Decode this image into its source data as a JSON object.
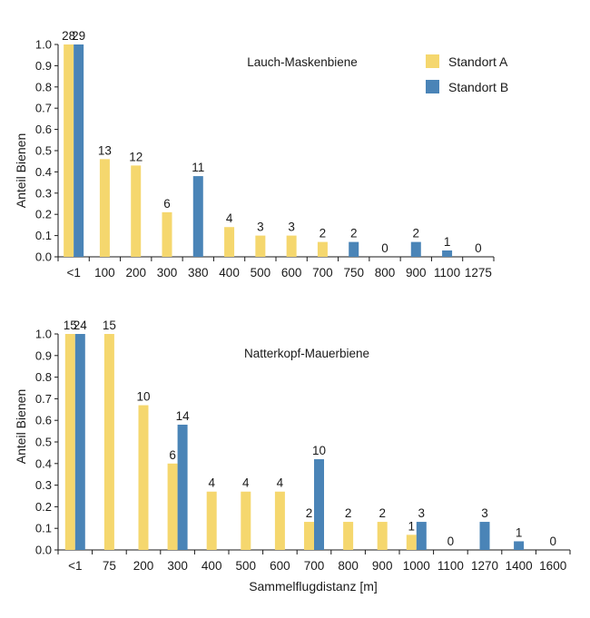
{
  "colors": {
    "standort_a": "#f5d76e",
    "standort_b": "#4a84b7"
  },
  "legend": {
    "items": [
      "Standort A",
      "Standort B"
    ]
  },
  "chart_data": [
    {
      "type": "bar",
      "subtitle": "Lauch-Maskenbiene",
      "ylabel": "Anteil Bienen",
      "xlabel": "",
      "ylim": [
        0,
        1.0
      ],
      "yticks": [
        "0.0",
        "0.1",
        "0.2",
        "0.3",
        "0.4",
        "0.5",
        "0.6",
        "0.7",
        "0.8",
        "0.9",
        "1.0"
      ],
      "categories": [
        "<1",
        "100",
        "200",
        "300",
        "380",
        "400",
        "500",
        "600",
        "700",
        "750",
        "800",
        "900",
        "1100",
        "1275"
      ],
      "legend": "top-right",
      "series": [
        {
          "name": "Standort A",
          "values": [
            1.0,
            0.46,
            0.43,
            0.21,
            null,
            0.14,
            0.1,
            0.1,
            0.07,
            null,
            0,
            null,
            null,
            0
          ],
          "labels": [
            "28",
            "13",
            "12",
            "6",
            "",
            "4",
            "3",
            "3",
            "2",
            "",
            "0",
            "",
            "",
            "0"
          ]
        },
        {
          "name": "Standort B",
          "values": [
            1.0,
            null,
            null,
            null,
            0.38,
            null,
            null,
            null,
            null,
            0.07,
            null,
            0.07,
            0.03,
            null
          ],
          "labels": [
            "29",
            "",
            "",
            "",
            "11",
            "",
            "",
            "",
            "",
            "2",
            "",
            "2",
            "1",
            ""
          ]
        }
      ]
    },
    {
      "type": "bar",
      "subtitle": "Natterkopf-Mauerbiene",
      "ylabel": "Anteil Bienen",
      "xlabel": "Sammelflugdistanz [m]",
      "ylim": [
        0,
        1.0
      ],
      "yticks": [
        "0.0",
        "0.1",
        "0.2",
        "0.3",
        "0.4",
        "0.5",
        "0.6",
        "0.7",
        "0.8",
        "0.9",
        "1.0"
      ],
      "categories": [
        "<1",
        "75",
        "200",
        "300",
        "400",
        "500",
        "600",
        "700",
        "800",
        "900",
        "1000",
        "1100",
        "1270",
        "1400",
        "1600"
      ],
      "series": [
        {
          "name": "Standort A",
          "values": [
            1.0,
            1.0,
            0.67,
            0.4,
            0.27,
            0.27,
            0.27,
            0.13,
            0.13,
            0.13,
            0.07,
            null,
            null,
            null,
            0
          ],
          "labels": [
            "15",
            "15",
            "10",
            "6",
            "4",
            "4",
            "4",
            "2",
            "2",
            "2",
            "1",
            "",
            "",
            "",
            "0"
          ]
        },
        {
          "name": "Standort B",
          "values": [
            1.0,
            null,
            null,
            0.58,
            null,
            null,
            null,
            0.42,
            null,
            null,
            0.13,
            0,
            0.13,
            0.04,
            null
          ],
          "labels": [
            "24",
            "",
            "",
            "14",
            "",
            "",
            "",
            "10",
            "",
            "",
            "3",
            "0",
            "3",
            "1",
            ""
          ]
        }
      ]
    }
  ]
}
